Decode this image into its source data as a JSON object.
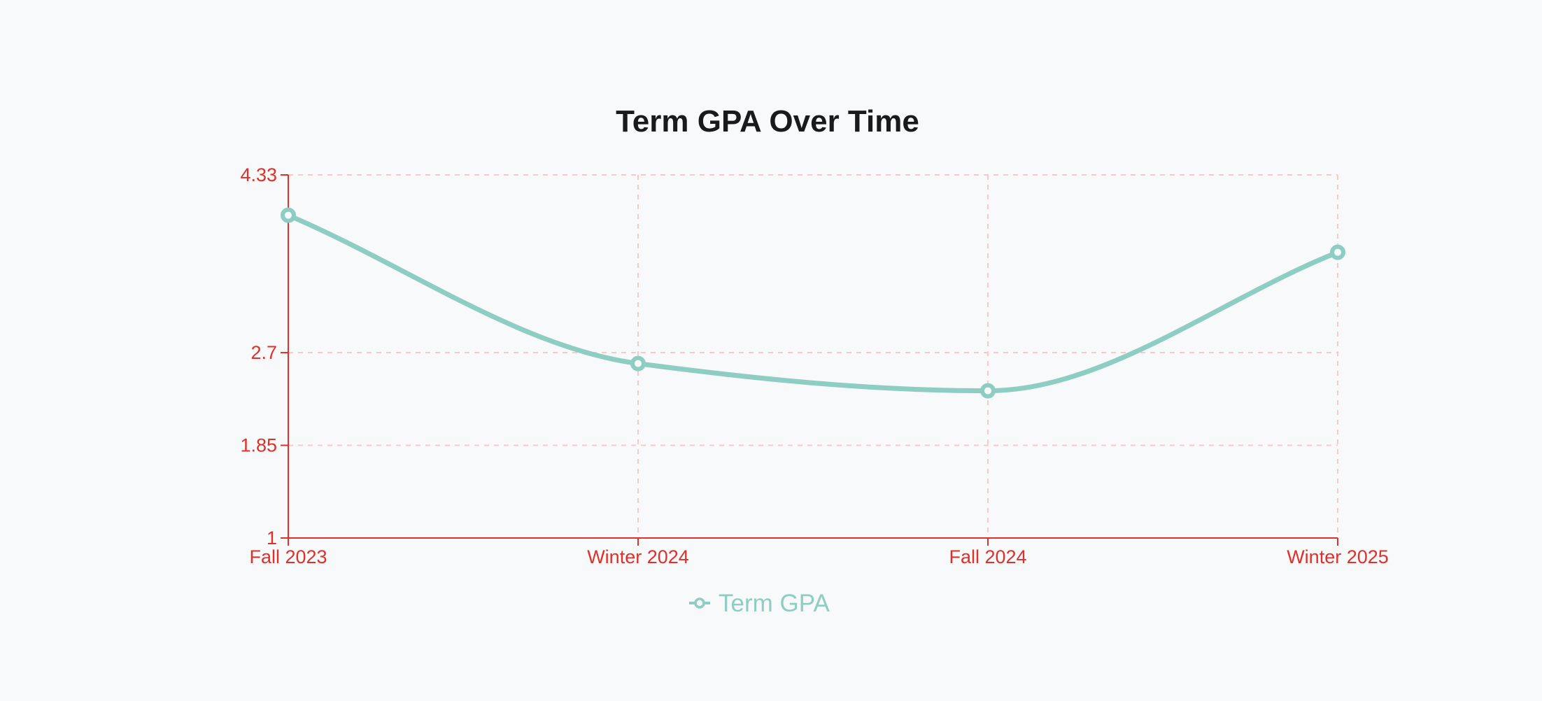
{
  "chart_data": {
    "type": "line",
    "title": "Term GPA Over Time",
    "categories": [
      "Fall 2023",
      "Winter 2024",
      "Fall 2024",
      "Winter 2025"
    ],
    "series": [
      {
        "name": "Term GPA",
        "values": [
          3.96,
          2.6,
          2.35,
          3.62
        ]
      }
    ],
    "yticks": [
      "4.33",
      "2.7",
      "1.85",
      "1"
    ],
    "ylim": [
      1,
      4.33
    ],
    "xlabel": "",
    "ylabel": "",
    "grid": true,
    "legend": "bottom",
    "curve": "smooth"
  },
  "colors": {
    "axis": "#e0302a",
    "grid": "#f7c9c9",
    "series": "#8ecdc1",
    "title": "#1a1a1a",
    "background": "#f8f9fb"
  }
}
